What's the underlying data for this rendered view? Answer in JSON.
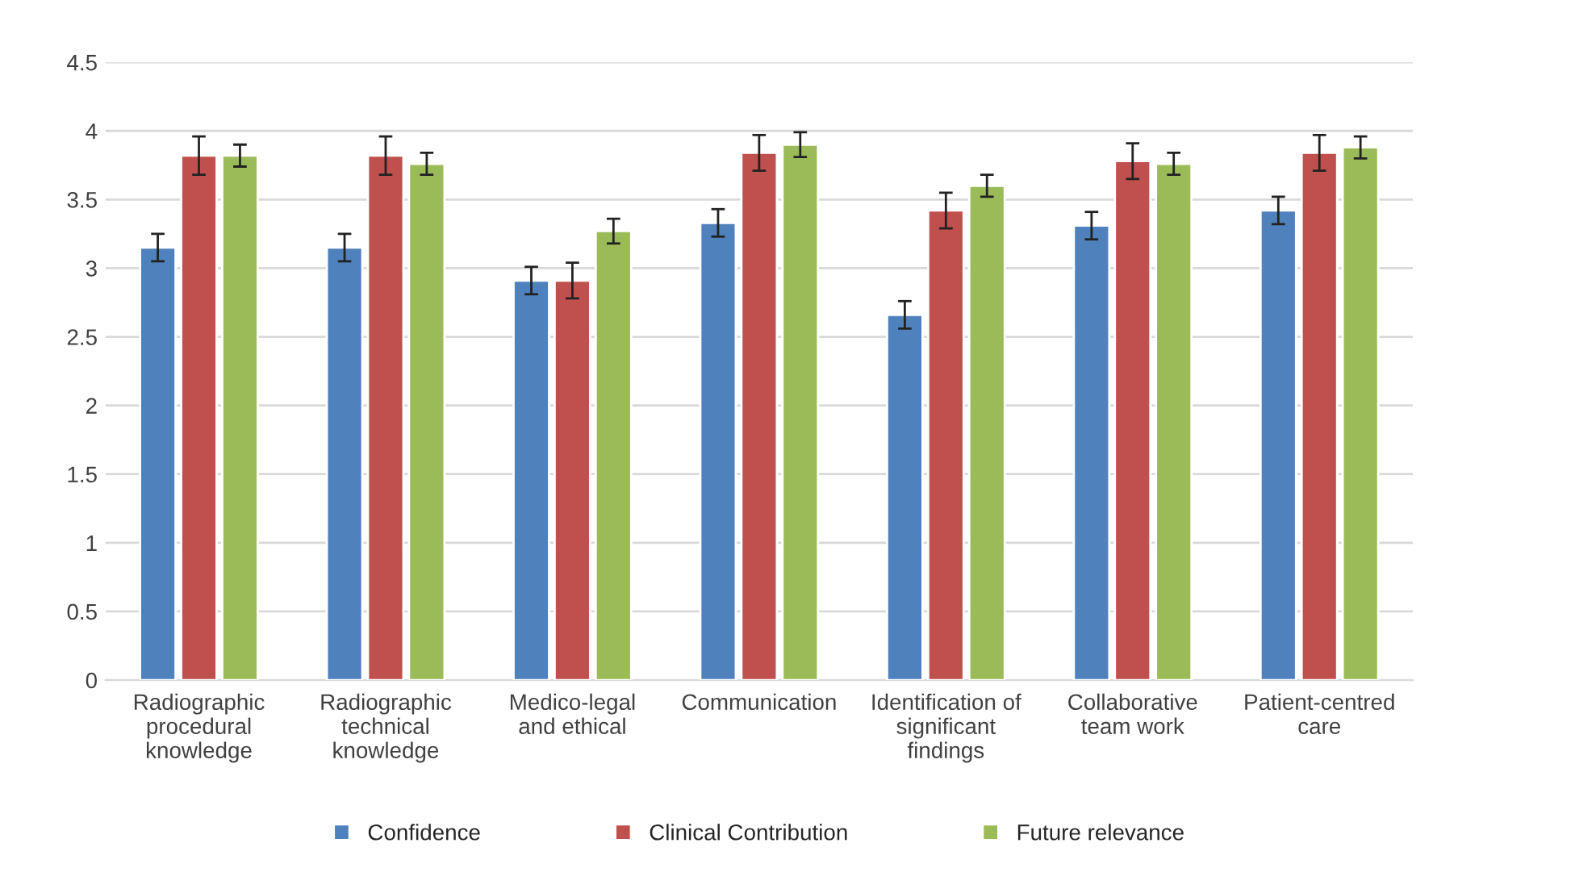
{
  "chart_data": {
    "type": "bar",
    "categories": [
      "Radiographic\nprocedural\nknowledge",
      "Radiographic\ntechnical\nknowledge",
      "Medico-legal\nand ethical",
      "Communication",
      "Identification of\nsignificant\nfindings",
      "Collaborative\nteam work",
      "Patient-centred\ncare"
    ],
    "series": [
      {
        "name": "Confidence",
        "color": "#4f81bd",
        "values": [
          3.15,
          3.15,
          2.91,
          3.33,
          2.66,
          3.31,
          3.42
        ],
        "errors": [
          0.1,
          0.1,
          0.1,
          0.1,
          0.1,
          0.1,
          0.1
        ]
      },
      {
        "name": "Clinical Contribution",
        "color": "#c0504d",
        "values": [
          3.82,
          3.82,
          2.91,
          3.84,
          3.42,
          3.78,
          3.84
        ],
        "errors": [
          0.14,
          0.14,
          0.13,
          0.13,
          0.13,
          0.13,
          0.13
        ]
      },
      {
        "name": "Future relevance",
        "color": "#9bbb59",
        "values": [
          3.82,
          3.76,
          3.27,
          3.9,
          3.6,
          3.76,
          3.88
        ],
        "errors": [
          0.08,
          0.08,
          0.09,
          0.09,
          0.08,
          0.08,
          0.08
        ]
      }
    ],
    "ylim": [
      0,
      4.5
    ],
    "yticks": [
      0,
      0.5,
      1,
      1.5,
      2,
      2.5,
      3,
      3.5,
      4,
      4.5
    ],
    "grid": "y",
    "legend": "bottom"
  }
}
